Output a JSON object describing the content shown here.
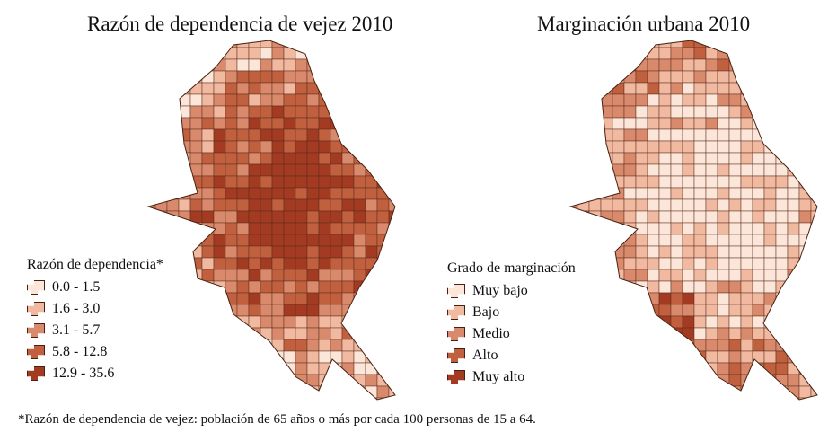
{
  "maps": [
    {
      "title": "Razón de dependencia de vejez 2010",
      "legend_title": "Razón de dependencia*",
      "classes": [
        "0.0 - 1.5",
        "1.6 - 3.0",
        "3.1 - 5.7",
        "5.8 - 12.8",
        "12.9 - 35.6"
      ]
    },
    {
      "title": "Marginación urbana 2010",
      "legend_title": "Grado de marginación",
      "classes": [
        "Muy bajo",
        "Bajo",
        "Medio",
        "Alto",
        "Muy alto"
      ]
    }
  ],
  "colors": [
    "#fbe6d9",
    "#f0b9a0",
    "#d98a6c",
    "#c0603f",
    "#a33a22"
  ],
  "footnote": "*Razón de dependencia de vejez: población de 65 años o más por cada 100 personas de 15 a 64."
}
